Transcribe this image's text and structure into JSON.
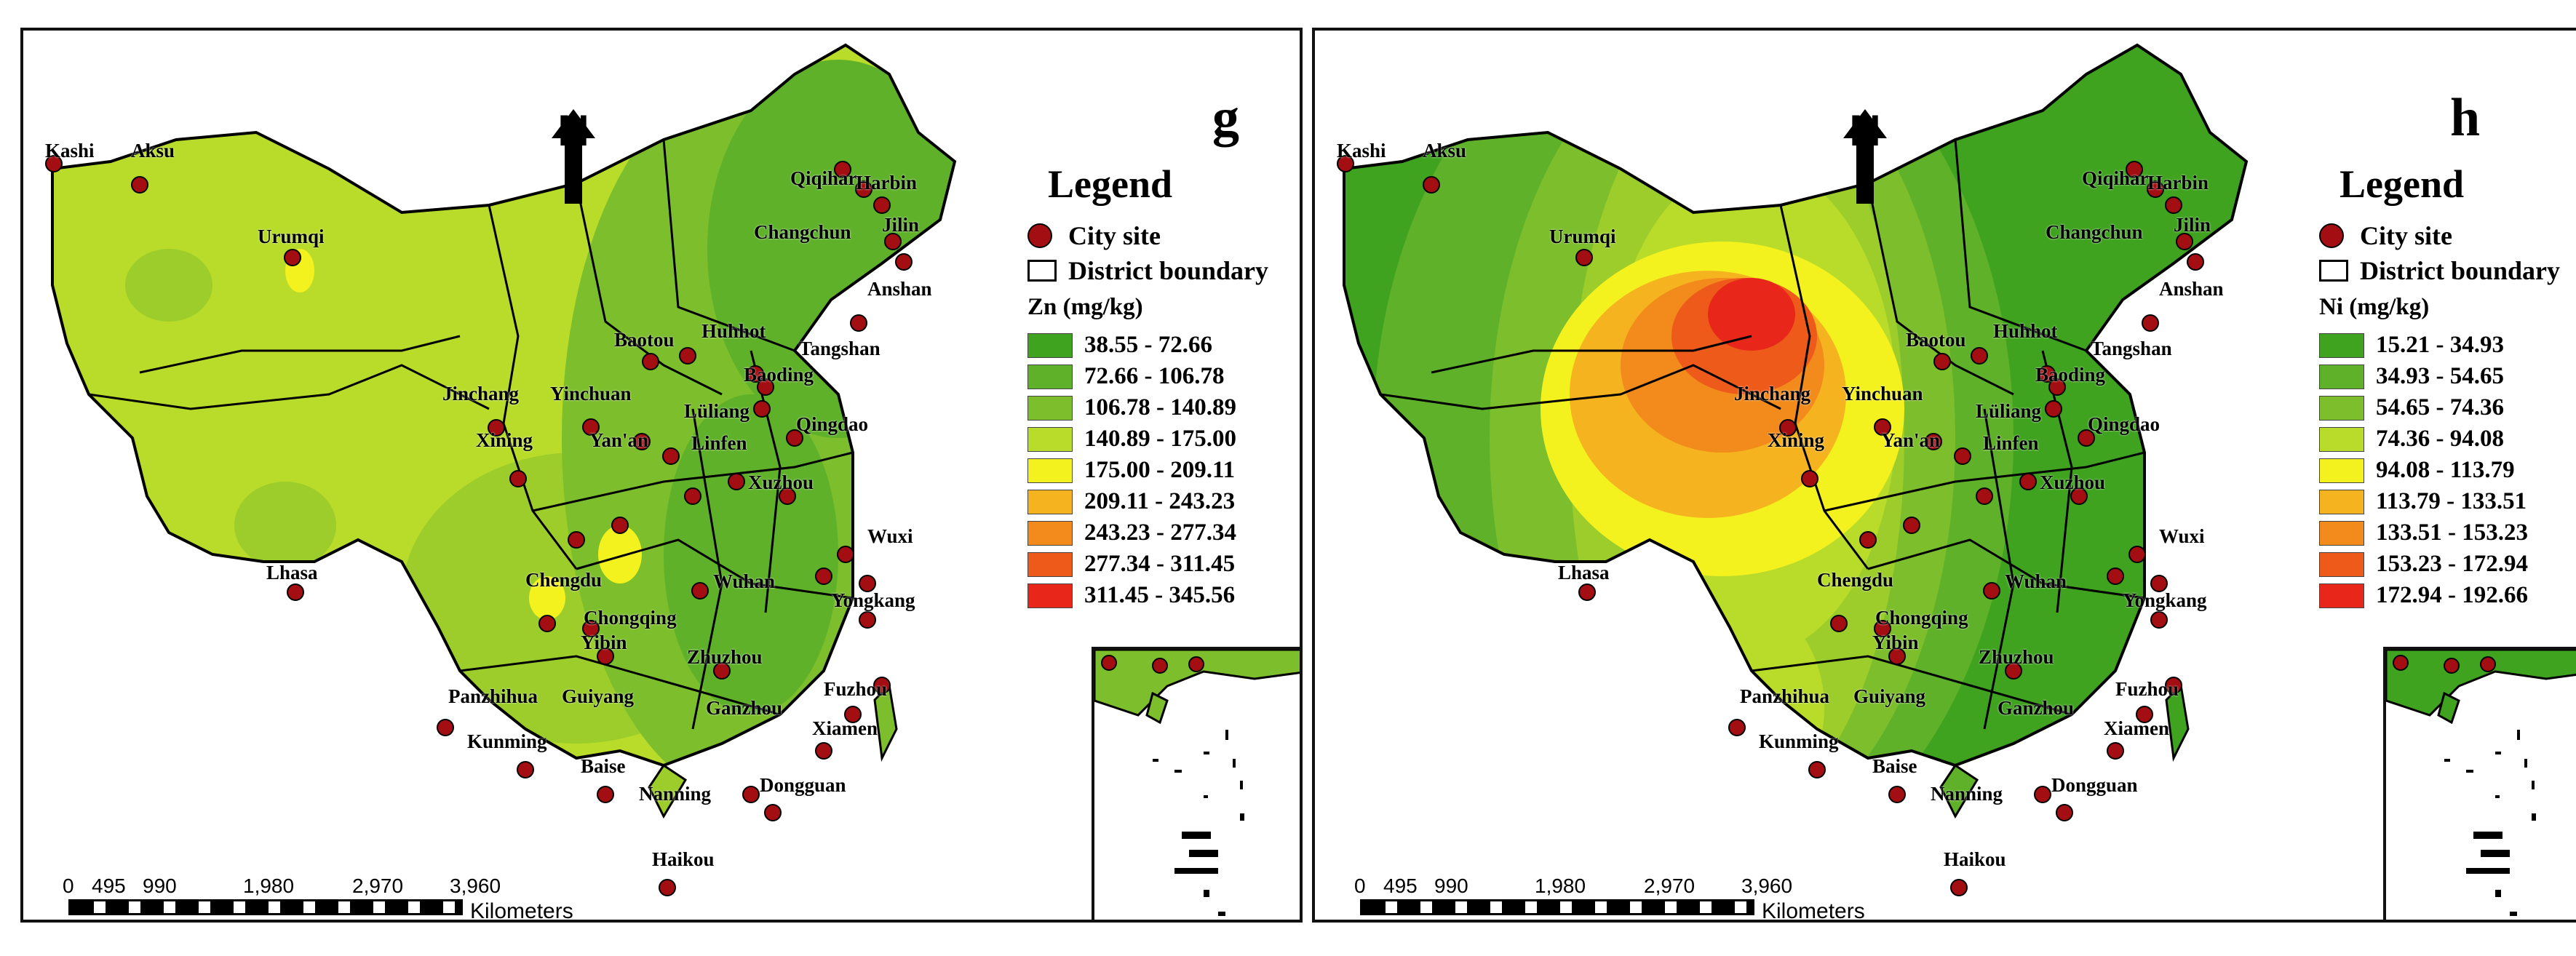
{
  "panels": [
    {
      "id": "g",
      "letter": "g",
      "north": "N",
      "legend": {
        "title": "Legend",
        "city_site": "City site",
        "district_boundary": "District boundary",
        "unit": "Zn (mg/kg)",
        "classes": [
          "38.55 - 72.66",
          "72.66 - 106.78",
          "106.78 - 140.89",
          "140.89 - 175.00",
          "175.00 - 209.11",
          "209.11 - 243.23",
          "243.23 - 277.34",
          "277.34 - 311.45",
          "311.45 - 345.56"
        ]
      },
      "scale": {
        "ticks": [
          "0",
          "495",
          "990",
          "1,980",
          "2,970",
          "3,960"
        ],
        "unit": "Kilometers"
      }
    },
    {
      "id": "h",
      "letter": "h",
      "north": "N",
      "legend": {
        "title": "Legend",
        "city_site": "City site",
        "district_boundary": "District boundary",
        "unit": "Ni (mg/kg)",
        "classes": [
          "15.21 - 34.93",
          "34.93 - 54.65",
          "54.65 - 74.36",
          "74.36 - 94.08",
          "94.08 - 113.79",
          "113.79 - 133.51",
          "133.51 - 153.23",
          "153.23 - 172.94",
          "172.94 - 192.66"
        ]
      },
      "scale": {
        "ticks": [
          "0",
          "495",
          "990",
          "1,980",
          "2,970",
          "3,960"
        ],
        "unit": "Kilometers"
      }
    }
  ],
  "class_colors": [
    "#3fa31f",
    "#5fb12a",
    "#7dbe2c",
    "#b9dc2a",
    "#f4f21e",
    "#f5b41f",
    "#f28a1c",
    "#ee5a1a",
    "#e8261a"
  ],
  "cities": [
    "Kashi",
    "Aksu",
    "Urumqi",
    "Lhasa",
    "Qiqihar",
    "Harbin",
    "Changchun",
    "Jilin",
    "Anshan",
    "Tangshan",
    "Baotou",
    "Huhhot",
    "Baoding",
    "Jinchang",
    "Yinchuan",
    "Xining",
    "Yan'an",
    "Lüliang",
    "Linfen",
    "Qingdao",
    "Xuzhou",
    "Wuxi",
    "Wuhan",
    "Yongkang",
    "Chengdu",
    "Chongqing",
    "Yibin",
    "Zhuzhou",
    "Fuzhou",
    "Panzhihua",
    "Guiyang",
    "Ganzhou",
    "Xiamen",
    "Kunming",
    "Baise",
    "Nanning",
    "Dongguan",
    "Haikou"
  ]
}
